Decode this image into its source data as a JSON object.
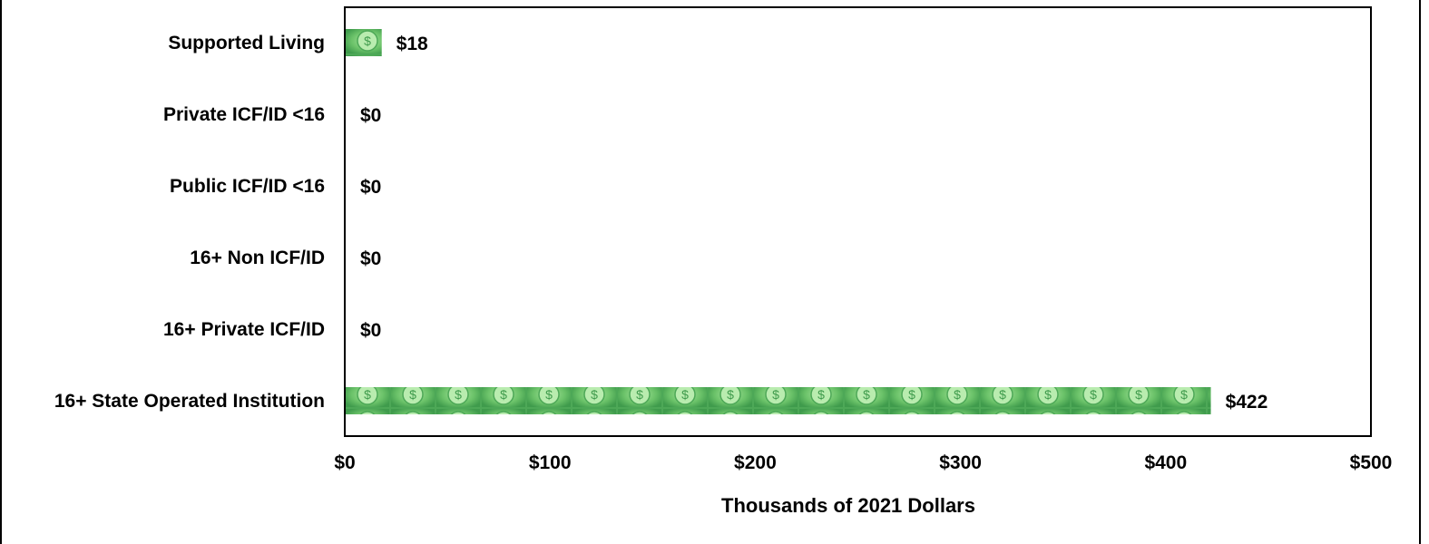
{
  "chart_data": {
    "type": "bar",
    "orientation": "horizontal",
    "categories": [
      "Supported Living",
      "Private ICF/ID <16",
      "Public ICF/ID <16",
      "16+ Non ICF/ID",
      "16+ Private ICF/ID",
      "16+ State Operated Institution"
    ],
    "values": [
      18,
      0,
      0,
      0,
      0,
      422
    ],
    "value_labels": [
      "$18",
      "$0",
      "$0",
      "$0",
      "$0",
      "$422"
    ],
    "xlabel": "Thousands of 2021 Dollars",
    "ylabel": "",
    "xlim": [
      0,
      500
    ],
    "xticks": [
      0,
      100,
      200,
      300,
      400,
      500
    ],
    "xtick_labels": [
      "$0",
      "$100",
      "$200",
      "$300",
      "$400",
      "$500"
    ],
    "grid": false,
    "bar_fill": "money-bill-icon pattern",
    "colors": {
      "bill_dark": "#3f9b4c",
      "bill_light": "#8fd58a",
      "bill_mid": "#5fb95f"
    }
  }
}
